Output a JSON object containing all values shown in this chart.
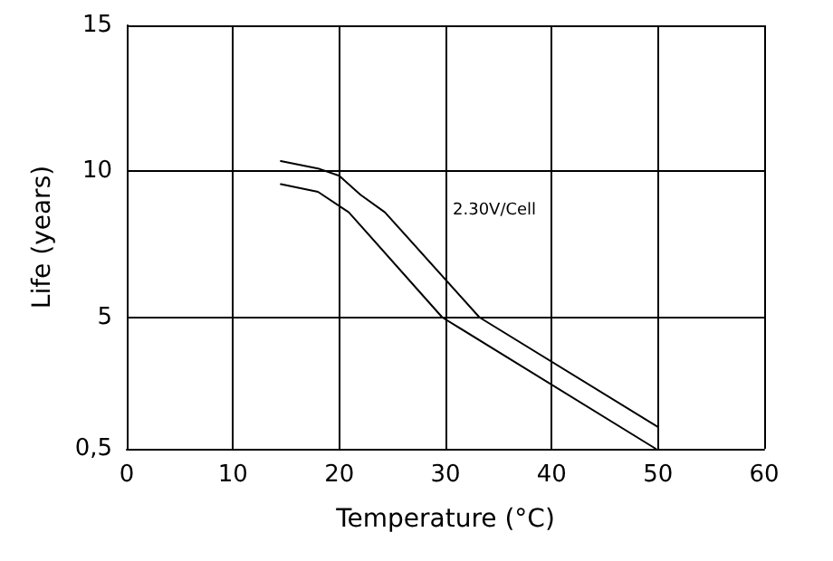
{
  "chart_data": {
    "type": "line",
    "xlabel": "Temperature (°C)",
    "ylabel": "Life (years)",
    "xlim": [
      0,
      60
    ],
    "xticks": [
      0,
      10,
      20,
      30,
      40,
      50,
      60
    ],
    "ylim": [
      0.5,
      15
    ],
    "yticks": [
      {
        "value": 0.5,
        "label": "0,5"
      },
      5,
      10,
      15
    ],
    "grid": true,
    "marker": "none",
    "line_style": "solid",
    "series": [
      {
        "color": "#000000",
        "x": [
          14.5,
          18,
          20,
          22,
          24.3,
          33.2,
          50
        ],
        "values": [
          10.35,
          10.1,
          9.85,
          9.2,
          8.6,
          5,
          1.25
        ]
      },
      {
        "color": "#000000",
        "x": [
          14.5,
          18,
          20.9,
          29.7,
          49.8
        ],
        "values": [
          9.56,
          9.3,
          8.6,
          5,
          0.5
        ]
      }
    ],
    "annotations": [
      "2.30V/Cell"
    ]
  }
}
